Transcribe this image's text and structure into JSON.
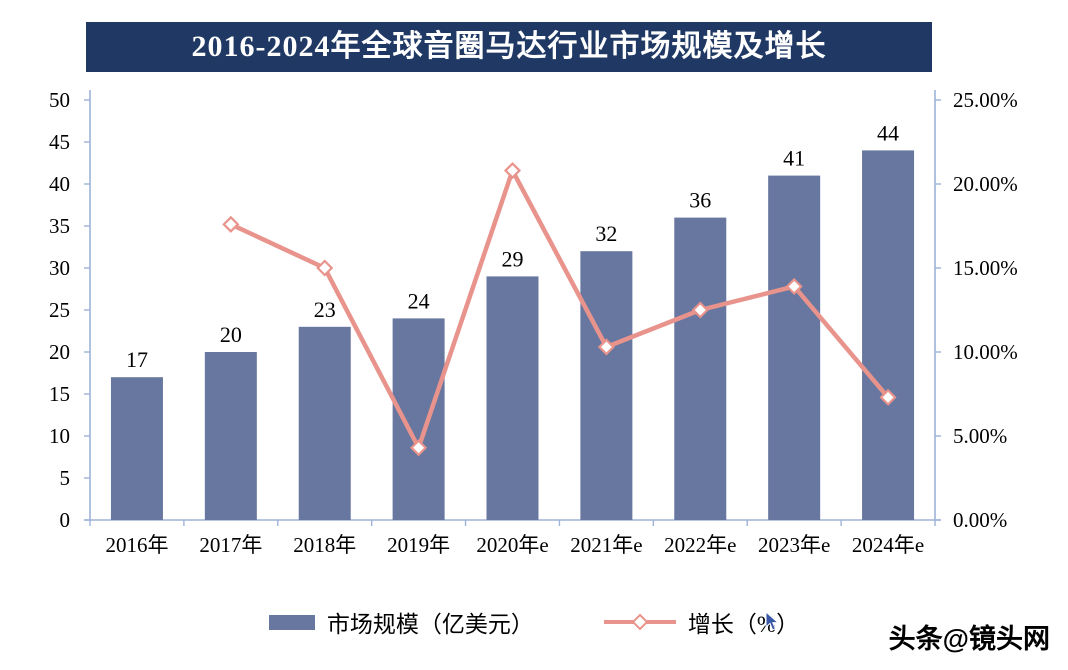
{
  "title": "2016-2024年全球音圈马达行业市场规模及增长",
  "watermark": "头条@镜头网",
  "legend": {
    "bars_label": "市场规模（亿美元）",
    "line_label": "增长（%）"
  },
  "chart_data": {
    "type": "bar",
    "subtype": "bar+line-combo",
    "title": "2016-2024年全球音圈马达行业市场规模及增长",
    "categories": [
      "2016年",
      "2017年",
      "2018年",
      "2019年",
      "2020年e",
      "2021年e",
      "2022年e",
      "2023年e",
      "2024年e"
    ],
    "series": [
      {
        "name": "市场规模（亿美元）",
        "type": "bar",
        "axis": "left",
        "color": "#68779f",
        "values": [
          17,
          20,
          23,
          24,
          29,
          32,
          36,
          41,
          44
        ],
        "data_labels": [
          "17",
          "20",
          "23",
          "24",
          "29",
          "32",
          "36",
          "41",
          "44"
        ]
      },
      {
        "name": "增长（%）",
        "type": "line",
        "axis": "right",
        "color": "#e8938c",
        "marker": "diamond-open",
        "values": [
          null,
          17.6,
          15.0,
          4.3,
          20.8,
          10.3,
          12.5,
          13.9,
          7.3
        ]
      }
    ],
    "left_axis": {
      "min": 0,
      "max": 50,
      "step": 5
    },
    "right_axis": {
      "min": 0,
      "max": 25,
      "step": 5,
      "format": "percent2",
      "tick_labels": [
        "0.00%",
        "5.00%",
        "10.00%",
        "15.00%",
        "20.00%",
        "25.00%"
      ]
    },
    "grid": false,
    "legend_position": "bottom",
    "axis_line_color": "#9db3d8",
    "text_color": "#000000"
  }
}
